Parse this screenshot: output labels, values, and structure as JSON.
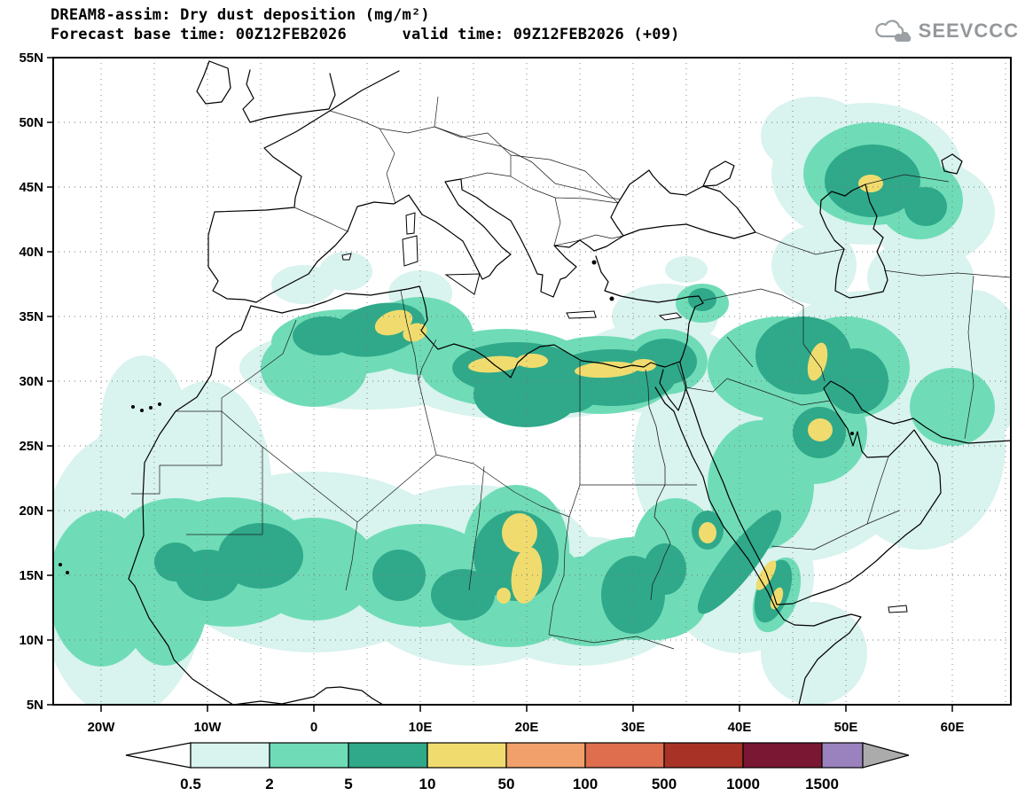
{
  "header": {
    "title": "DREAM8-assim: Dry dust deposition (mg/m²)",
    "subtitle": "Forecast base time: 00Z12FEB2026      valid time: 09Z12FEB2026 (+09)",
    "logo_text": "SEEVCCC"
  },
  "map": {
    "y_ticks": [
      "55N",
      "50N",
      "45N",
      "40N",
      "35N",
      "30N",
      "25N",
      "20N",
      "15N",
      "10N",
      "5N"
    ],
    "x_ticks": [
      "20W",
      "10W",
      "0",
      "10E",
      "20E",
      "30E",
      "40E",
      "50E",
      "60E"
    ]
  },
  "legend": {
    "labels": [
      "0.5",
      "2",
      "5",
      "10",
      "50",
      "100",
      "500",
      "1000",
      "1500"
    ],
    "box_colors": [
      "#D9F3EE",
      "#6FDCB7",
      "#2FA98A",
      "#F0DC6E",
      "#F2A06B",
      "#DE6E4E",
      "#A83226",
      "#7A1733",
      "#9A82BE"
    ],
    "under_arrow_color": "#FFFFFF",
    "over_arrow_color": "#ABABAB",
    "units": "mg/m²"
  },
  "chart_data": {
    "type": "heatmap",
    "title": "DREAM8-assim: Dry dust deposition (mg/m²)",
    "variable": "Dry dust deposition",
    "units": "mg/m²",
    "model": "DREAM8-assim",
    "forecast_base_time": "00Z12FEB2026",
    "valid_time": "09Z12FEB2026",
    "lead_time": "+09",
    "x_ticks": [
      "20W",
      "10W",
      "0",
      "10E",
      "20E",
      "30E",
      "40E",
      "50E",
      "60E"
    ],
    "y_ticks": [
      "55N",
      "50N",
      "45N",
      "40N",
      "35N",
      "30N",
      "25N",
      "20N",
      "15N",
      "10N",
      "5N"
    ],
    "contour_levels_mg_m2": [
      0.5,
      2,
      5,
      10,
      50,
      100,
      500,
      1000,
      1500
    ],
    "level_colors": [
      "#D9F3EE",
      "#6FDCB7",
      "#2FA98A",
      "#F0DC6E",
      "#F2A06B",
      "#DE6E4E",
      "#A83226",
      "#7A1733",
      "#9A82BE"
    ],
    "max_shown_band_mg_m2": "10-50",
    "high_deposition_areas": [
      {
        "area": "NE Algeria / Tunisia (7-10E, 33-35N)",
        "band_mg_m2": "10-50"
      },
      {
        "area": "Libya-Egypt Mediterranean coast (15-31E, 30-32N)",
        "band_mg_m2": "10-50"
      },
      {
        "area": "Chad / Bodele depression (17-21E, 13-19N)",
        "band_mg_m2": "10-50"
      },
      {
        "area": "Iraq-Iran border (46-48E, 30-33N)",
        "band_mg_m2": "10-50"
      },
      {
        "area": "E Saudi Arabia (47-48E, 26N)",
        "band_mg_m2": "10-50"
      },
      {
        "area": "S Red Sea coast (42-44E, 13-16N)",
        "band_mg_m2": "10-50"
      },
      {
        "area": "N Caspian lowland (52E, 45N)",
        "band_mg_m2": "10-50"
      },
      {
        "area": "Sudan Red Sea coast (37E, 18N)",
        "band_mg_m2": "10-50"
      }
    ]
  }
}
